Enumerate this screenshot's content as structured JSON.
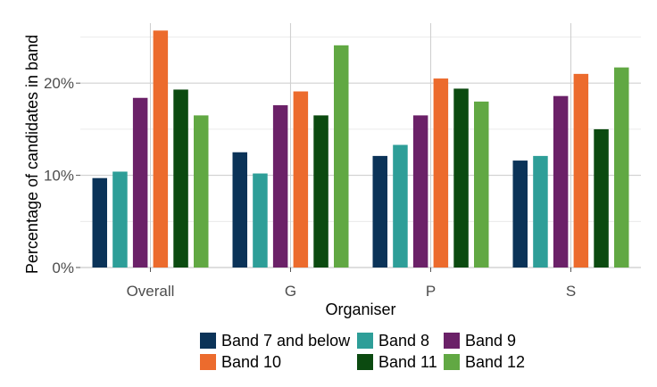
{
  "chart_data": {
    "type": "bar",
    "xlabel": "Organiser",
    "ylabel": "Percentage of candidates in band",
    "ylim": [
      0,
      26.5
    ],
    "yticks": [
      0,
      10,
      20
    ],
    "ytick_labels": [
      "0%",
      "10%",
      "20%"
    ],
    "grid": true,
    "legend_position": "bottom",
    "categories": [
      "Overall",
      "G",
      "P",
      "S"
    ],
    "series": [
      {
        "name": "Band 7 and below",
        "color": "#0b3358",
        "values": [
          9.7,
          12.5,
          12.1,
          11.6
        ]
      },
      {
        "name": "Band 8",
        "color": "#2e9e98",
        "values": [
          10.4,
          10.2,
          13.3,
          12.1
        ]
      },
      {
        "name": "Band 9",
        "color": "#6b2168",
        "values": [
          18.4,
          17.6,
          16.5,
          18.6
        ]
      },
      {
        "name": "Band 10",
        "color": "#ec6b2d",
        "values": [
          25.7,
          19.1,
          20.5,
          21.0
        ]
      },
      {
        "name": "Band 11",
        "color": "#0b4a10",
        "values": [
          19.3,
          16.5,
          19.4,
          15.0
        ]
      },
      {
        "name": "Band 12",
        "color": "#61a843",
        "values": [
          16.5,
          24.1,
          18.0,
          21.7
        ]
      }
    ]
  }
}
